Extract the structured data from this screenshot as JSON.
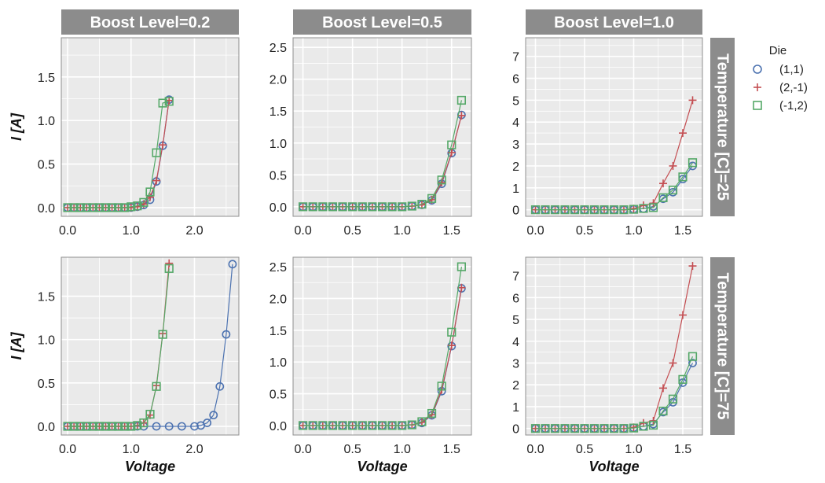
{
  "chart_data": {
    "type": "line",
    "facet_columns": {
      "variable": "Boost Level",
      "labels": [
        "Boost Level=0.2",
        "Boost Level=0.5",
        "Boost Level=1.0"
      ]
    },
    "facet_rows": {
      "variable": "Temperature [C]",
      "labels": [
        "Temperature [C]=25",
        "Temperature [C]=75"
      ]
    },
    "xlabel": "Voltage",
    "ylabel": "I [A]",
    "legend": {
      "title": "Die",
      "placement": "right",
      "entries": [
        "(1,1)",
        "(2,-1)",
        "(-1,2)"
      ]
    },
    "colors": {
      "(1,1)": "#4c72b0",
      "(2,-1)": "#c44e52",
      "(-1,2)": "#55a868"
    },
    "markers": {
      "(1,1)": "circle",
      "(2,-1)": "plus",
      "(-1,2)": "square"
    },
    "panels": [
      {
        "row": 0,
        "col": 0,
        "xlim": [
          -0.1,
          2.7
        ],
        "ylim": [
          -0.1,
          1.95
        ],
        "xticks": [
          0.0,
          1.0,
          2.0
        ],
        "xtick_labels": [
          "0.0",
          "1.0",
          "2.0"
        ],
        "yticks": [
          0.0,
          0.5,
          1.0,
          1.5
        ],
        "ytick_labels": [
          "0.0",
          "0.5",
          "1.0",
          "1.5"
        ],
        "series": [
          {
            "name": "(1,1)",
            "x": [
              0.0,
              0.1,
              0.2,
              0.3,
              0.4,
              0.5,
              0.6,
              0.7,
              0.8,
              0.9,
              1.0,
              1.1,
              1.2,
              1.3,
              1.4,
              1.5,
              1.6
            ],
            "y": [
              0,
              0,
              0,
              0,
              0,
              0,
              0,
              0,
              0,
              0,
              0,
              0.01,
              0.03,
              0.09,
              0.3,
              0.71,
              1.24
            ]
          },
          {
            "name": "(2,-1)",
            "x": [
              0.0,
              0.1,
              0.2,
              0.3,
              0.4,
              0.5,
              0.6,
              0.7,
              0.8,
              0.9,
              1.0,
              1.1,
              1.2,
              1.3,
              1.4,
              1.5,
              1.6
            ],
            "y": [
              0,
              0,
              0,
              0,
              0,
              0,
              0,
              0,
              0,
              0,
              0,
              0.01,
              0.04,
              0.12,
              0.31,
              0.72,
              1.23
            ]
          },
          {
            "name": "(-1,2)",
            "x": [
              0.0,
              0.1,
              0.2,
              0.3,
              0.4,
              0.5,
              0.6,
              0.7,
              0.8,
              0.9,
              1.0,
              1.1,
              1.2,
              1.3,
              1.4,
              1.5,
              1.6
            ],
            "y": [
              0,
              0,
              0,
              0,
              0,
              0,
              0,
              0,
              0,
              0,
              0.01,
              0.02,
              0.06,
              0.18,
              0.63,
              1.2,
              1.22
            ]
          }
        ]
      },
      {
        "row": 0,
        "col": 1,
        "xlim": [
          -0.1,
          1.7
        ],
        "ylim": [
          -0.15,
          2.65
        ],
        "xticks": [
          0.0,
          0.5,
          1.0,
          1.5
        ],
        "xtick_labels": [
          "0.0",
          "0.5",
          "1.0",
          "1.5"
        ],
        "yticks": [
          0.0,
          0.5,
          1.0,
          1.5,
          2.0,
          2.5
        ],
        "ytick_labels": [
          "0.0",
          "0.5",
          "1.0",
          "1.5",
          "2.0",
          "2.5"
        ],
        "series": [
          {
            "name": "(1,1)",
            "x": [
              0.0,
              0.1,
              0.2,
              0.3,
              0.4,
              0.5,
              0.6,
              0.7,
              0.8,
              0.9,
              1.0,
              1.1,
              1.2,
              1.3,
              1.4,
              1.5,
              1.6
            ],
            "y": [
              0,
              0,
              0,
              0,
              0,
              0,
              0,
              0,
              0,
              0,
              0,
              0.01,
              0.03,
              0.1,
              0.36,
              0.84,
              1.44
            ]
          },
          {
            "name": "(2,-1)",
            "x": [
              0.0,
              0.1,
              0.2,
              0.3,
              0.4,
              0.5,
              0.6,
              0.7,
              0.8,
              0.9,
              1.0,
              1.1,
              1.2,
              1.3,
              1.4,
              1.5,
              1.6
            ],
            "y": [
              0,
              0,
              0,
              0,
              0,
              0,
              0,
              0,
              0,
              0,
              0,
              0.01,
              0.03,
              0.11,
              0.38,
              0.85,
              1.43
            ]
          },
          {
            "name": "(-1,2)",
            "x": [
              0.0,
              0.1,
              0.2,
              0.3,
              0.4,
              0.5,
              0.6,
              0.7,
              0.8,
              0.9,
              1.0,
              1.1,
              1.2,
              1.3,
              1.4,
              1.5,
              1.6
            ],
            "y": [
              0,
              0,
              0,
              0,
              0,
              0,
              0,
              0,
              0,
              0,
              0,
              0.01,
              0.04,
              0.13,
              0.42,
              0.97,
              1.67
            ]
          }
        ]
      },
      {
        "row": 0,
        "col": 2,
        "xlim": [
          -0.1,
          1.7
        ],
        "ylim": [
          -0.3,
          7.85
        ],
        "xticks": [
          0.0,
          0.5,
          1.0,
          1.5
        ],
        "xtick_labels": [
          "0.0",
          "0.5",
          "1.0",
          "1.5"
        ],
        "yticks": [
          0,
          1,
          2,
          3,
          4,
          5,
          6,
          7
        ],
        "ytick_labels": [
          "0",
          "1",
          "2",
          "3",
          "4",
          "5",
          "6",
          "7"
        ],
        "series": [
          {
            "name": "(1,1)",
            "x": [
              0.0,
              0.1,
              0.2,
              0.3,
              0.4,
              0.5,
              0.6,
              0.7,
              0.8,
              0.9,
              1.0,
              1.1,
              1.2,
              1.3,
              1.4,
              1.5,
              1.6
            ],
            "y": [
              0,
              0,
              0,
              0,
              0,
              0,
              0,
              0,
              0,
              0,
              0.02,
              0.05,
              0.15,
              0.5,
              0.8,
              1.4,
              2.0
            ]
          },
          {
            "name": "(2,-1)",
            "x": [
              0.0,
              0.1,
              0.2,
              0.3,
              0.4,
              0.5,
              0.6,
              0.7,
              0.8,
              0.9,
              1.0,
              1.1,
              1.2,
              1.3,
              1.4,
              1.5,
              1.6
            ],
            "y": [
              0,
              0,
              0,
              0,
              0,
              0,
              0,
              0,
              0,
              0,
              0.05,
              0.2,
              0.3,
              1.2,
              2.0,
              3.5,
              5.0
            ]
          },
          {
            "name": "(-1,2)",
            "x": [
              0.0,
              0.1,
              0.2,
              0.3,
              0.4,
              0.5,
              0.6,
              0.7,
              0.8,
              0.9,
              1.0,
              1.1,
              1.2,
              1.3,
              1.4,
              1.5,
              1.6
            ],
            "y": [
              0,
              0,
              0,
              0,
              0,
              0,
              0,
              0,
              0,
              0,
              0.02,
              0.06,
              0.1,
              0.55,
              0.9,
              1.5,
              2.15
            ]
          }
        ]
      },
      {
        "row": 1,
        "col": 0,
        "xlim": [
          -0.1,
          2.7
        ],
        "ylim": [
          -0.1,
          1.95
        ],
        "xticks": [
          0.0,
          1.0,
          2.0
        ],
        "xtick_labels": [
          "0.0",
          "1.0",
          "2.0"
        ],
        "yticks": [
          0.0,
          0.5,
          1.0,
          1.5
        ],
        "ytick_labels": [
          "0.0",
          "0.5",
          "1.0",
          "1.5"
        ],
        "series": [
          {
            "name": "(1,1)",
            "x": [
              0.0,
              0.1,
              0.2,
              0.3,
              0.4,
              0.5,
              0.6,
              0.7,
              0.8,
              0.9,
              1.0,
              1.1,
              1.2,
              1.4,
              1.6,
              1.8,
              2.0,
              2.1,
              2.2,
              2.3,
              2.4,
              2.5,
              2.6
            ],
            "y": [
              0,
              0,
              0,
              0,
              0,
              0,
              0,
              0,
              0,
              0,
              0,
              0,
              0,
              0,
              0,
              0,
              0,
              0.01,
              0.04,
              0.13,
              0.46,
              1.06,
              1.87
            ]
          },
          {
            "name": "(2,-1)",
            "x": [
              0.0,
              0.1,
              0.2,
              0.3,
              0.4,
              0.5,
              0.6,
              0.7,
              0.8,
              0.9,
              1.0,
              1.1,
              1.2,
              1.3,
              1.4,
              1.5,
              1.6
            ],
            "y": [
              0,
              0,
              0,
              0,
              0,
              0,
              0,
              0,
              0,
              0,
              0,
              0.01,
              0.04,
              0.13,
              0.47,
              1.07,
              1.88
            ]
          },
          {
            "name": "(-1,2)",
            "x": [
              0.0,
              0.1,
              0.2,
              0.3,
              0.4,
              0.5,
              0.6,
              0.7,
              0.8,
              0.9,
              1.0,
              1.1,
              1.2,
              1.3,
              1.4,
              1.5,
              1.6
            ],
            "y": [
              0,
              0,
              0,
              0,
              0,
              0,
              0,
              0,
              0,
              0,
              0,
              0.01,
              0.04,
              0.14,
              0.46,
              1.06,
              1.82
            ]
          }
        ]
      },
      {
        "row": 1,
        "col": 1,
        "xlim": [
          -0.1,
          1.7
        ],
        "ylim": [
          -0.15,
          2.65
        ],
        "xticks": [
          0.0,
          0.5,
          1.0,
          1.5
        ],
        "xtick_labels": [
          "0.0",
          "0.5",
          "1.0",
          "1.5"
        ],
        "yticks": [
          0.0,
          0.5,
          1.0,
          1.5,
          2.0,
          2.5
        ],
        "ytick_labels": [
          "0.0",
          "0.5",
          "1.0",
          "1.5",
          "2.0",
          "2.5"
        ],
        "series": [
          {
            "name": "(1,1)",
            "x": [
              0.0,
              0.1,
              0.2,
              0.3,
              0.4,
              0.5,
              0.6,
              0.7,
              0.8,
              0.9,
              1.0,
              1.1,
              1.2,
              1.3,
              1.4,
              1.5,
              1.6
            ],
            "y": [
              0,
              0,
              0,
              0,
              0,
              0,
              0,
              0,
              0,
              0,
              0,
              0.01,
              0.04,
              0.16,
              0.54,
              1.25,
              2.16
            ]
          },
          {
            "name": "(2,-1)",
            "x": [
              0.0,
              0.1,
              0.2,
              0.3,
              0.4,
              0.5,
              0.6,
              0.7,
              0.8,
              0.9,
              1.0,
              1.1,
              1.2,
              1.3,
              1.4,
              1.5,
              1.6
            ],
            "y": [
              0,
              0,
              0,
              0,
              0,
              0,
              0,
              0,
              0,
              0,
              0,
              0.01,
              0.05,
              0.17,
              0.56,
              1.26,
              2.17
            ]
          },
          {
            "name": "(-1,2)",
            "x": [
              0.0,
              0.1,
              0.2,
              0.3,
              0.4,
              0.5,
              0.6,
              0.7,
              0.8,
              0.9,
              1.0,
              1.1,
              1.2,
              1.3,
              1.4,
              1.5,
              1.6
            ],
            "y": [
              0,
              0,
              0,
              0,
              0,
              0,
              0,
              0,
              0,
              0,
              0,
              0.01,
              0.06,
              0.19,
              0.62,
              1.47,
              2.5
            ]
          }
        ]
      },
      {
        "row": 1,
        "col": 2,
        "xlim": [
          -0.1,
          1.7
        ],
        "ylim": [
          -0.3,
          7.85
        ],
        "xticks": [
          0.0,
          0.5,
          1.0,
          1.5
        ],
        "xtick_labels": [
          "0.0",
          "0.5",
          "1.0",
          "1.5"
        ],
        "yticks": [
          0,
          1,
          2,
          3,
          4,
          5,
          6,
          7
        ],
        "ytick_labels": [
          "0",
          "1",
          "2",
          "3",
          "4",
          "5",
          "6",
          "7"
        ],
        "series": [
          {
            "name": "(1,1)",
            "x": [
              0.0,
              0.1,
              0.2,
              0.3,
              0.4,
              0.5,
              0.6,
              0.7,
              0.8,
              0.9,
              1.0,
              1.1,
              1.2,
              1.3,
              1.4,
              1.5,
              1.6
            ],
            "y": [
              0,
              0,
              0,
              0,
              0,
              0,
              0,
              0,
              0,
              0,
              0.03,
              0.1,
              0.2,
              0.75,
              1.2,
              2.1,
              3.0
            ]
          },
          {
            "name": "(2,-1)",
            "x": [
              0.0,
              0.1,
              0.2,
              0.3,
              0.4,
              0.5,
              0.6,
              0.7,
              0.8,
              0.9,
              1.0,
              1.1,
              1.2,
              1.3,
              1.4,
              1.5,
              1.6
            ],
            "y": [
              0,
              0,
              0,
              0,
              0,
              0,
              0,
              0,
              0,
              0,
              0.05,
              0.25,
              0.35,
              1.85,
              3.0,
              5.2,
              7.45
            ]
          },
          {
            "name": "(-1,2)",
            "x": [
              0.0,
              0.1,
              0.2,
              0.3,
              0.4,
              0.5,
              0.6,
              0.7,
              0.8,
              0.9,
              1.0,
              1.1,
              1.2,
              1.3,
              1.4,
              1.5,
              1.6
            ],
            "y": [
              0,
              0,
              0,
              0,
              0,
              0,
              0,
              0,
              0,
              0,
              0.02,
              0.1,
              0.15,
              0.8,
              1.35,
              2.25,
              3.3
            ]
          }
        ]
      }
    ]
  }
}
